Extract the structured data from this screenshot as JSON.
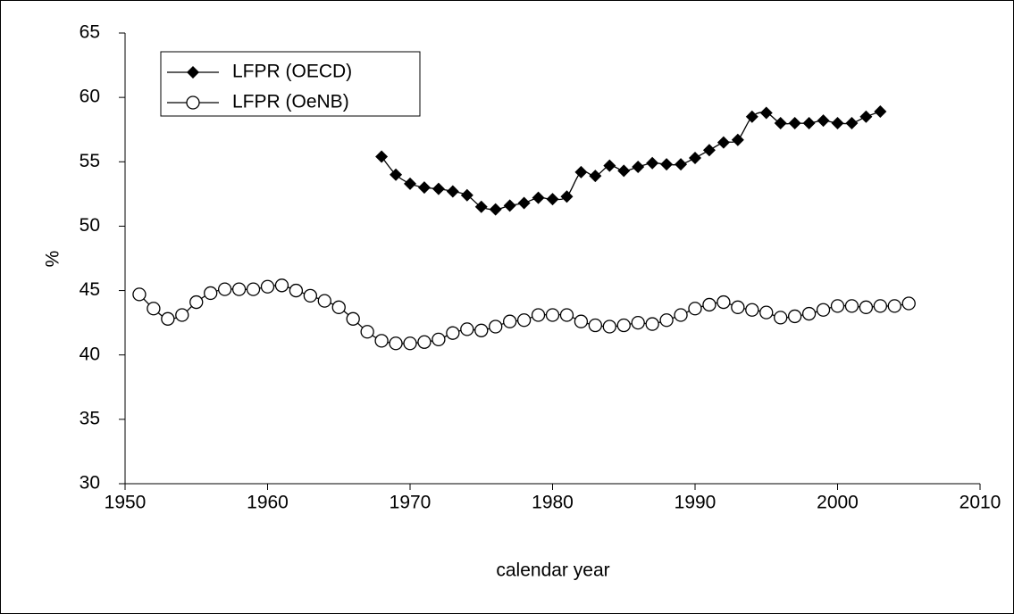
{
  "chart_data": {
    "type": "line",
    "xlabel": "calendar year",
    "ylabel": "%",
    "xlim": [
      1950,
      2010
    ],
    "xticks": [
      1950,
      1960,
      1970,
      1980,
      1990,
      2000,
      2010
    ],
    "ylim": [
      30,
      65
    ],
    "yticks": [
      30,
      35,
      40,
      45,
      50,
      55,
      60,
      65
    ],
    "grid": false,
    "legend": "upper left",
    "series": [
      {
        "name": "LFPR (OECD)",
        "color": "#000000",
        "marker": "diamond",
        "x": [
          1968,
          1969,
          1970,
          1971,
          1972,
          1973,
          1974,
          1975,
          1976,
          1977,
          1978,
          1979,
          1980,
          1981,
          1982,
          1983,
          1984,
          1985,
          1986,
          1987,
          1988,
          1989,
          1990,
          1991,
          1992,
          1993,
          1994,
          1995,
          1996,
          1997,
          1998,
          1999,
          2000,
          2001,
          2002,
          2003
        ],
        "values": [
          55.4,
          54.0,
          53.3,
          53.0,
          52.9,
          52.7,
          52.4,
          51.5,
          51.3,
          51.6,
          51.8,
          52.2,
          52.1,
          52.3,
          54.2,
          53.9,
          54.7,
          54.3,
          54.6,
          54.9,
          54.8,
          54.8,
          55.3,
          55.9,
          56.5,
          56.7,
          58.5,
          58.8,
          58.0,
          58.0,
          58.0,
          58.2,
          58.0,
          58.0,
          58.5,
          58.9
        ]
      },
      {
        "name": "LFPR (OeNB)",
        "color": "#000000",
        "marker": "circle",
        "x": [
          1951,
          1952,
          1953,
          1954,
          1955,
          1956,
          1957,
          1958,
          1959,
          1960,
          1961,
          1962,
          1963,
          1964,
          1965,
          1966,
          1967,
          1968,
          1969,
          1970,
          1971,
          1972,
          1973,
          1974,
          1975,
          1976,
          1977,
          1978,
          1979,
          1980,
          1981,
          1982,
          1983,
          1984,
          1985,
          1986,
          1987,
          1988,
          1989,
          1990,
          1991,
          1992,
          1993,
          1994,
          1995,
          1996,
          1997,
          1998,
          1999,
          2000,
          2001,
          2002,
          2003,
          2004,
          2005
        ],
        "values": [
          44.7,
          43.6,
          42.8,
          43.1,
          44.1,
          44.8,
          45.1,
          45.1,
          45.1,
          45.3,
          45.4,
          45.0,
          44.6,
          44.2,
          43.7,
          42.8,
          41.8,
          41.1,
          40.9,
          40.9,
          41.0,
          41.2,
          41.7,
          42.0,
          41.9,
          42.2,
          42.6,
          42.7,
          43.1,
          43.1,
          43.1,
          42.6,
          42.3,
          42.2,
          42.3,
          42.5,
          42.4,
          42.7,
          43.1,
          43.6,
          43.9,
          44.1,
          43.7,
          43.5,
          43.3,
          42.9,
          43.0,
          43.2,
          43.5,
          43.8,
          43.8,
          43.7,
          43.8,
          43.8,
          44.0
        ]
      }
    ]
  }
}
